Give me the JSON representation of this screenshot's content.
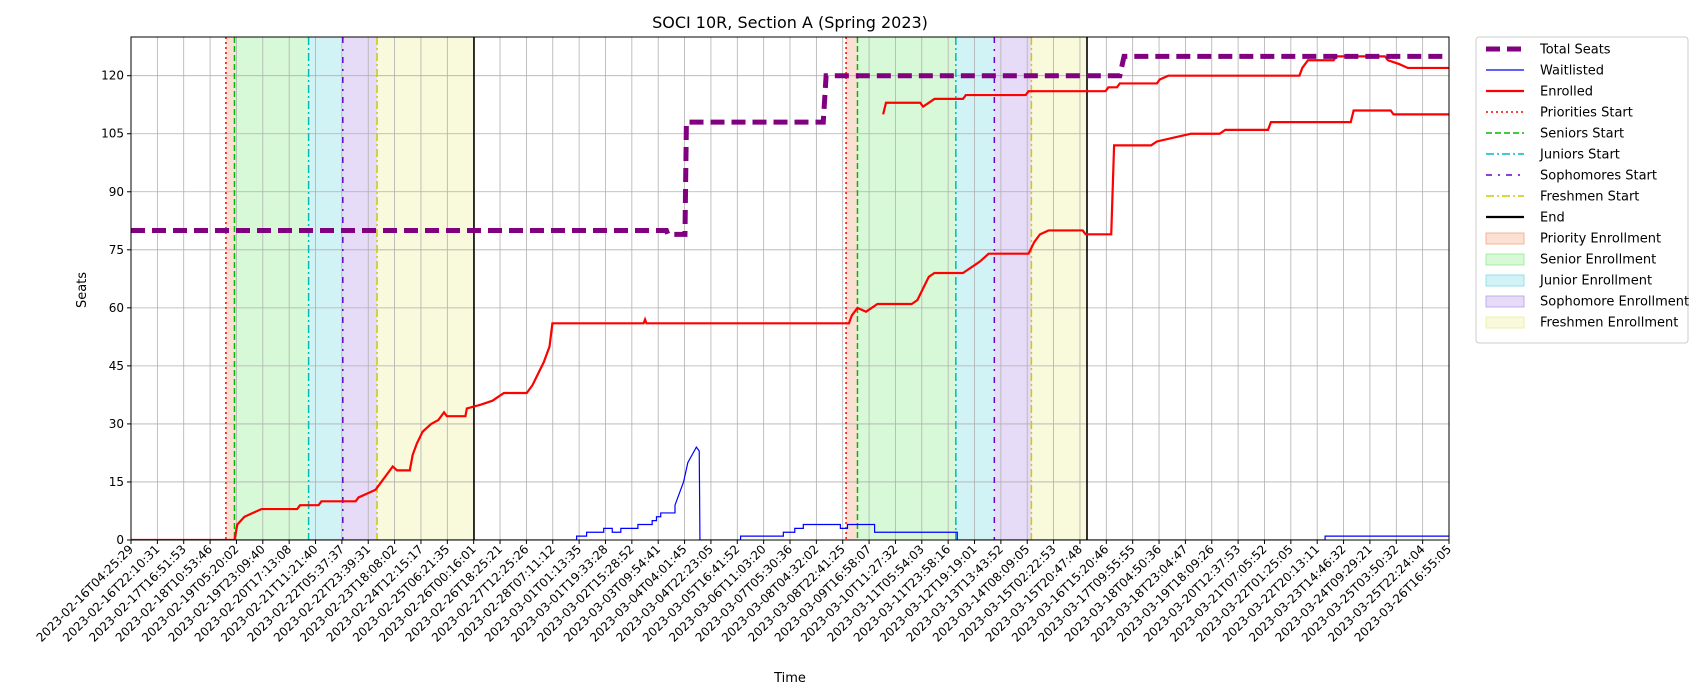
{
  "chart_data": {
    "type": "line",
    "title": "SOCI 10R, Section A (Spring 2023)",
    "xlabel": "Time",
    "ylabel": "Seats",
    "ylim": [
      0,
      130
    ],
    "yticks": [
      0,
      15,
      30,
      45,
      60,
      75,
      90,
      105,
      120
    ],
    "x_start": "2023-02-16T04:25:29",
    "x_end": "2023-03-26T16:55:05",
    "grid": true,
    "legend_position": "outside-right-top",
    "xtick_labels": [
      "2023-02-16T04:25:29",
      "2023-02-16T22:10:31",
      "2023-02-17T16:51:53",
      "2023-02-18T10:53:46",
      "2023-02-19T05:20:02",
      "2023-02-19T23:09:40",
      "2023-02-20T17:13:08",
      "2023-02-21T11:21:40",
      "2023-02-22T05:37:37",
      "2023-02-22T23:39:31",
      "2023-02-23T18:08:02",
      "2023-02-24T12:15:17",
      "2023-02-25T06:21:35",
      "2023-02-26T00:16:01",
      "2023-02-26T18:25:21",
      "2023-02-27T12:25:26",
      "2023-02-28T07:11:12",
      "2023-03-01T01:13:35",
      "2023-03-01T19:33:28",
      "2023-03-02T15:28:52",
      "2023-03-03T09:54:41",
      "2023-03-04T04:01:45",
      "2023-03-04T22:23:05",
      "2023-03-05T16:41:52",
      "2023-03-06T11:03:20",
      "2023-03-07T05:30:36",
      "2023-03-08T04:32:02",
      "2023-03-08T22:41:25",
      "2023-03-09T16:58:07",
      "2023-03-10T11:27:32",
      "2023-03-11T05:54:03",
      "2023-03-11T23:58:16",
      "2023-03-12T19:19:01",
      "2023-03-13T13:43:52",
      "2023-03-14T08:09:05",
      "2023-03-15T02:22:53",
      "2023-03-15T20:47:48",
      "2023-03-16T15:20:46",
      "2023-03-17T09:55:55",
      "2023-03-18T04:50:36",
      "2023-03-18T23:04:47",
      "2023-03-19T18:09:26",
      "2023-03-20T12:37:53",
      "2023-03-21T07:05:52",
      "2023-03-22T01:25:05",
      "2023-03-22T20:13:11",
      "2023-03-23T14:46:32",
      "2023-03-24T09:29:21",
      "2023-03-25T03:50:32",
      "2023-03-25T22:24:04",
      "2023-03-26T16:55:05"
    ],
    "series": [
      {
        "name": "Total Seats",
        "color": "#800080",
        "style": "dashed-thick",
        "points": [
          [
            "2023-02-16T04:25:29",
            80
          ],
          [
            "2023-03-03T20:00:00",
            80
          ],
          [
            "2023-03-03T21:00:00",
            79
          ],
          [
            "2023-03-04T09:00:00",
            79
          ],
          [
            "2023-03-04T10:00:00",
            108
          ],
          [
            "2023-03-08T10:00:00",
            108
          ],
          [
            "2023-03-08T12:00:00",
            120
          ],
          [
            "2023-03-17T02:00:00",
            120
          ],
          [
            "2023-03-17T05:00:00",
            125
          ],
          [
            "2023-03-26T16:55:05",
            125
          ]
        ]
      },
      {
        "name": "Waitlisted",
        "color": "#0000ff",
        "style": "solid-thin",
        "points": [
          [
            "2023-02-16T04:25:29",
            0
          ],
          [
            "2023-03-01T05:00:00",
            0
          ],
          [
            "2023-03-01T05:00:00",
            1
          ],
          [
            "2023-03-01T12:00:00",
            1
          ],
          [
            "2023-03-01T12:00:00",
            2
          ],
          [
            "2023-03-02T00:00:00",
            2
          ],
          [
            "2023-03-02T00:00:00",
            3
          ],
          [
            "2023-03-02T06:00:00",
            3
          ],
          [
            "2023-03-02T06:00:00",
            2
          ],
          [
            "2023-03-02T12:00:00",
            2
          ],
          [
            "2023-03-02T12:00:00",
            3
          ],
          [
            "2023-03-03T00:00:00",
            3
          ],
          [
            "2023-03-03T00:00:00",
            4
          ],
          [
            "2023-03-03T10:00:00",
            4
          ],
          [
            "2023-03-03T10:00:00",
            5
          ],
          [
            "2023-03-03T13:00:00",
            5
          ],
          [
            "2023-03-03T13:00:00",
            6
          ],
          [
            "2023-03-03T16:00:00",
            6
          ],
          [
            "2023-03-03T16:00:00",
            7
          ],
          [
            "2023-03-04T02:00:00",
            7
          ],
          [
            "2023-03-04T02:00:00",
            9
          ],
          [
            "2023-03-04T05:00:00",
            12
          ],
          [
            "2023-03-04T08:00:00",
            15
          ],
          [
            "2023-03-04T11:00:00",
            20
          ],
          [
            "2023-03-04T14:00:00",
            22
          ],
          [
            "2023-03-04T17:00:00",
            24
          ],
          [
            "2023-03-04T19:00:00",
            23
          ],
          [
            "2023-03-04T19:30:00",
            0
          ],
          [
            "2023-03-06T00:00:00",
            0
          ],
          [
            "2023-03-06T00:00:00",
            1
          ],
          [
            "2023-03-07T06:00:00",
            1
          ],
          [
            "2023-03-07T06:00:00",
            2
          ],
          [
            "2023-03-07T14:00:00",
            2
          ],
          [
            "2023-03-07T14:00:00",
            3
          ],
          [
            "2023-03-07T20:00:00",
            3
          ],
          [
            "2023-03-07T20:00:00",
            4
          ],
          [
            "2023-03-08T22:00:00",
            4
          ],
          [
            "2023-03-08T22:00:00",
            3
          ],
          [
            "2023-03-09T03:00:00",
            3
          ],
          [
            "2023-03-09T03:00:00",
            4
          ],
          [
            "2023-03-09T22:00:00",
            4
          ],
          [
            "2023-03-09T22:00:00",
            2
          ],
          [
            "2023-03-12T08:00:00",
            2
          ],
          [
            "2023-03-12T08:00:00",
            0
          ],
          [
            "2023-03-23T02:00:00",
            0
          ],
          [
            "2023-03-23T02:00:00",
            1
          ],
          [
            "2023-03-26T16:55:05",
            1
          ]
        ]
      },
      {
        "name": "Enrolled",
        "color": "#ff0000",
        "style": "solid",
        "points": [
          [
            "2023-02-16T04:25:29",
            0
          ],
          [
            "2023-02-19T05:00:00",
            0
          ],
          [
            "2023-02-19T07:00:00",
            4
          ],
          [
            "2023-02-19T12:00:00",
            6
          ],
          [
            "2023-02-19T18:00:00",
            7
          ],
          [
            "2023-02-20T00:00:00",
            8
          ],
          [
            "2023-02-21T01:00:00",
            8
          ],
          [
            "2023-02-21T03:00:00",
            9
          ],
          [
            "2023-02-21T16:00:00",
            9
          ],
          [
            "2023-02-21T18:00:00",
            10
          ],
          [
            "2023-02-22T18:00:00",
            10
          ],
          [
            "2023-02-22T20:00:00",
            11
          ],
          [
            "2023-02-23T02:00:00",
            12
          ],
          [
            "2023-02-23T08:00:00",
            13
          ],
          [
            "2023-02-23T12:00:00",
            15
          ],
          [
            "2023-02-23T16:00:00",
            17
          ],
          [
            "2023-02-23T20:00:00",
            19
          ],
          [
            "2023-02-23T23:00:00",
            18
          ],
          [
            "2023-02-24T08:00:00",
            18
          ],
          [
            "2023-02-24T10:00:00",
            22
          ],
          [
            "2023-02-24T13:00:00",
            25
          ],
          [
            "2023-02-24T17:00:00",
            28
          ],
          [
            "2023-02-24T23:00:00",
            30
          ],
          [
            "2023-02-25T04:00:00",
            31
          ],
          [
            "2023-02-25T08:00:00",
            33
          ],
          [
            "2023-02-25T10:00:00",
            32
          ],
          [
            "2023-02-25T23:00:00",
            32
          ],
          [
            "2023-02-26T00:00:00",
            34
          ],
          [
            "2023-02-26T10:00:00",
            35
          ],
          [
            "2023-02-26T18:00:00",
            36
          ],
          [
            "2023-02-26T22:00:00",
            37
          ],
          [
            "2023-02-27T02:00:00",
            38
          ],
          [
            "2023-02-27T18:00:00",
            38
          ],
          [
            "2023-02-27T22:00:00",
            40
          ],
          [
            "2023-02-28T02:00:00",
            43
          ],
          [
            "2023-02-28T06:00:00",
            46
          ],
          [
            "2023-02-28T10:00:00",
            50
          ],
          [
            "2023-02-28T12:00:00",
            56
          ],
          [
            "2023-03-03T04:00:00",
            56
          ],
          [
            "2023-03-03T05:00:00",
            57
          ],
          [
            "2023-03-03T06:00:00",
            56
          ],
          [
            "2023-03-09T04:00:00",
            56
          ],
          [
            "2023-03-09T06:00:00",
            58
          ],
          [
            "2023-03-09T10:00:00",
            60
          ],
          [
            "2023-03-09T16:00:00",
            59
          ],
          [
            "2023-03-10T00:00:00",
            61
          ],
          [
            "2023-03-11T00:00:00",
            61
          ],
          [
            "2023-03-11T04:00:00",
            62
          ],
          [
            "2023-03-11T08:00:00",
            65
          ],
          [
            "2023-03-11T12:00:00",
            68
          ],
          [
            "2023-03-11T16:00:00",
            69
          ],
          [
            "2023-03-12T12:00:00",
            69
          ],
          [
            "2023-03-12T16:00:00",
            70
          ],
          [
            "2023-03-12T20:00:00",
            71
          ],
          [
            "2023-03-13T00:00:00",
            72
          ],
          [
            "2023-03-13T06:00:00",
            74
          ],
          [
            "2023-03-14T10:00:00",
            74
          ],
          [
            "2023-03-14T14:00:00",
            77
          ],
          [
            "2023-03-14T18:00:00",
            79
          ],
          [
            "2023-03-15T00:00:00",
            80
          ],
          [
            "2023-03-16T00:00:00",
            80
          ],
          [
            "2023-03-16T02:00:00",
            79
          ],
          [
            "2023-03-16T20:00:00",
            79
          ],
          [
            "2023-03-16T22:00:00",
            102
          ],
          [
            "2023-03-18T00:00:00",
            102
          ],
          [
            "2023-03-18T04:00:00",
            103
          ],
          [
            "2023-03-18T16:00:00",
            104
          ],
          [
            "2023-03-19T04:00:00",
            105
          ],
          [
            "2023-03-20T00:00:00",
            105
          ],
          [
            "2023-03-20T04:00:00",
            106
          ],
          [
            "2023-03-21T10:00:00",
            106
          ],
          [
            "2023-03-21T12:00:00",
            108
          ],
          [
            "2023-03-23T20:00:00",
            108
          ],
          [
            "2023-03-23T22:00:00",
            111
          ],
          [
            "2023-03-25T00:00:00",
            111
          ],
          [
            "2023-03-25T02:00:00",
            110
          ],
          [
            "2023-03-26T16:55:05",
            110
          ]
        ],
        "note_segment_b": [
          [
            "2023-03-10T04:00:00",
            110
          ],
          [
            "2023-03-10T06:00:00",
            113
          ],
          [
            "2023-03-11T06:00:00",
            113
          ],
          [
            "2023-03-11T08:00:00",
            112
          ],
          [
            "2023-03-11T12:00:00",
            113
          ],
          [
            "2023-03-11T16:00:00",
            114
          ],
          [
            "2023-03-12T12:00:00",
            114
          ],
          [
            "2023-03-12T14:00:00",
            115
          ],
          [
            "2023-03-14T08:00:00",
            115
          ],
          [
            "2023-03-14T10:00:00",
            116
          ],
          [
            "2023-03-16T16:00:00",
            116
          ],
          [
            "2023-03-16T18:00:00",
            117
          ],
          [
            "2023-03-17T00:00:00",
            117
          ],
          [
            "2023-03-17T02:00:00",
            118
          ],
          [
            "2023-03-18T04:00:00",
            118
          ],
          [
            "2023-03-18T06:00:00",
            119
          ],
          [
            "2023-03-18T12:00:00",
            120
          ],
          [
            "2023-03-22T08:00:00",
            120
          ],
          [
            "2023-03-22T10:00:00",
            122
          ],
          [
            "2023-03-22T14:00:00",
            124
          ],
          [
            "2023-03-23T08:00:00",
            124
          ],
          [
            "2023-03-23T10:00:00",
            125
          ],
          [
            "2023-03-24T20:00:00",
            125
          ],
          [
            "2023-03-24T22:00:00",
            124
          ],
          [
            "2023-03-25T06:00:00",
            123
          ],
          [
            "2023-03-25T12:00:00",
            122
          ],
          [
            "2023-03-26T16:55:05",
            122
          ]
        ]
      }
    ],
    "vlines": [
      {
        "name": "Priorities Start",
        "color": "#ff0000",
        "style": "dotted",
        "x": [
          "2023-02-18T23:00:00",
          "2023-03-09T02:00:00"
        ]
      },
      {
        "name": "Seniors Start",
        "color": "#00bb00",
        "style": "dashed",
        "x": [
          "2023-02-19T05:00:00",
          "2023-03-09T10:00:00"
        ]
      },
      {
        "name": "Juniors Start",
        "color": "#00bbbb",
        "style": "dashdot",
        "x": [
          "2023-02-21T09:00:00",
          "2023-03-12T07:00:00"
        ]
      },
      {
        "name": "Sophomores Start",
        "color": "#6600cc",
        "style": "dashdotted-sparse",
        "x": [
          "2023-02-22T09:00:00",
          "2023-03-13T10:00:00"
        ]
      },
      {
        "name": "Freshmen Start",
        "color": "#cccc00",
        "style": "dashdot",
        "x": [
          "2023-02-23T09:00:00",
          "2023-03-14T12:00:00"
        ]
      },
      {
        "name": "End",
        "color": "#000000",
        "style": "solid",
        "x": [
          "2023-02-26T05:00:00",
          "2023-03-16T03:00:00"
        ]
      }
    ],
    "spans": [
      {
        "name": "Priority Enrollment",
        "color": "#f4a582",
        "ranges": [
          [
            "2023-02-18T23:00:00",
            "2023-02-19T05:00:00"
          ],
          [
            "2023-03-09T02:00:00",
            "2023-03-09T10:00:00"
          ]
        ]
      },
      {
        "name": "Senior Enrollment",
        "color": "#90ee90",
        "ranges": [
          [
            "2023-02-19T05:00:00",
            "2023-02-21T09:00:00"
          ],
          [
            "2023-03-09T10:00:00",
            "2023-03-12T07:00:00"
          ]
        ]
      },
      {
        "name": "Junior Enrollment",
        "color": "#7fdde6",
        "ranges": [
          [
            "2023-02-21T09:00:00",
            "2023-02-22T09:00:00"
          ],
          [
            "2023-03-12T07:00:00",
            "2023-03-13T10:00:00"
          ]
        ]
      },
      {
        "name": "Sophomore Enrollment",
        "color": "#b99ae8",
        "ranges": [
          [
            "2023-02-22T09:00:00",
            "2023-02-23T09:00:00"
          ],
          [
            "2023-03-13T10:00:00",
            "2023-03-14T12:00:00"
          ]
        ]
      },
      {
        "name": "Freshmen Enrollment",
        "color": "#eeee99",
        "ranges": [
          [
            "2023-02-23T09:00:00",
            "2023-02-26T05:00:00"
          ],
          [
            "2023-03-14T12:00:00",
            "2023-03-16T03:00:00"
          ]
        ]
      }
    ],
    "legend": [
      {
        "label": "Total Seats",
        "kind": "line",
        "color": "#800080",
        "style": "dashed-thick"
      },
      {
        "label": "Waitlisted",
        "kind": "line",
        "color": "#0000ff",
        "style": "solid-thin"
      },
      {
        "label": "Enrolled",
        "kind": "line",
        "color": "#ff0000",
        "style": "solid"
      },
      {
        "label": "Priorities Start",
        "kind": "line",
        "color": "#ff0000",
        "style": "dotted"
      },
      {
        "label": "Seniors Start",
        "kind": "line",
        "color": "#00bb00",
        "style": "dashed"
      },
      {
        "label": "Juniors Start",
        "kind": "line",
        "color": "#00bbbb",
        "style": "dashdot"
      },
      {
        "label": "Sophomores Start",
        "kind": "line",
        "color": "#6600cc",
        "style": "dashdotted-sparse"
      },
      {
        "label": "Freshmen Start",
        "kind": "line",
        "color": "#cccc00",
        "style": "dashdot"
      },
      {
        "label": "End",
        "kind": "line",
        "color": "#000000",
        "style": "solid"
      },
      {
        "label": "Priority Enrollment",
        "kind": "patch",
        "color": "#f4a582"
      },
      {
        "label": "Senior Enrollment",
        "kind": "patch",
        "color": "#90ee90"
      },
      {
        "label": "Junior Enrollment",
        "kind": "patch",
        "color": "#7fdde6"
      },
      {
        "label": "Sophomore Enrollment",
        "kind": "patch",
        "color": "#b99ae8"
      },
      {
        "label": "Freshmen Enrollment",
        "kind": "patch",
        "color": "#eeee99"
      }
    ]
  }
}
